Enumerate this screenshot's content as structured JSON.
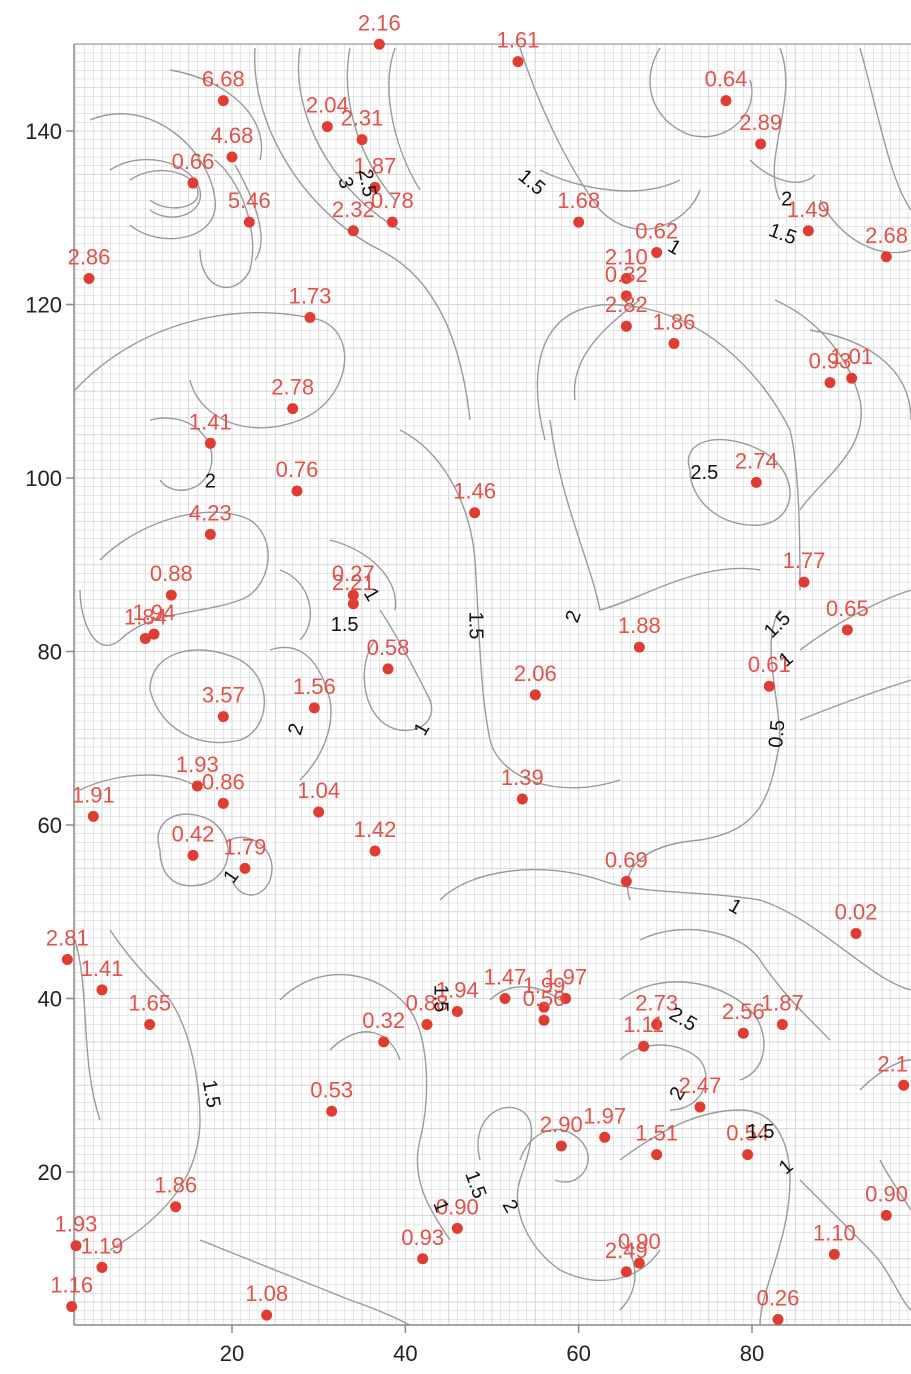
{
  "chart_data": {
    "type": "scatter",
    "title": "",
    "xlabel": "",
    "ylabel": "",
    "xlim": [
      1,
      98
    ],
    "ylim": [
      3,
      150
    ],
    "x_ticks": [
      20,
      40,
      60,
      80
    ],
    "y_ticks": [
      20,
      40,
      60,
      80,
      100,
      120,
      140
    ],
    "grid": true,
    "colors": {
      "point": "#e03c31",
      "label": "#e0524a",
      "contour": "#9a9a9a",
      "grid": "#d7d7d7",
      "axis": "#888888"
    },
    "points": [
      {
        "x": 37,
        "y": 150,
        "label": "2.16"
      },
      {
        "x": 53,
        "y": 148,
        "label": "1.61"
      },
      {
        "x": 19,
        "y": 143.5,
        "label": "6.68"
      },
      {
        "x": 77,
        "y": 143.5,
        "label": "0.64"
      },
      {
        "x": 31,
        "y": 140.5,
        "label": "2.04"
      },
      {
        "x": 35,
        "y": 139,
        "label": "2.31"
      },
      {
        "x": 20,
        "y": 137,
        "label": "4.68"
      },
      {
        "x": 81,
        "y": 138.5,
        "label": "2.89"
      },
      {
        "x": 15.5,
        "y": 134,
        "label": "0.66"
      },
      {
        "x": 36.5,
        "y": 133.5,
        "label": "1.87"
      },
      {
        "x": 22,
        "y": 129.5,
        "label": "5.46"
      },
      {
        "x": 38.5,
        "y": 129.5,
        "label": "0.78"
      },
      {
        "x": 34,
        "y": 128.5,
        "label": "2.32"
      },
      {
        "x": 60,
        "y": 129.5,
        "label": "1.68"
      },
      {
        "x": 86.5,
        "y": 128.5,
        "label": "1.49"
      },
      {
        "x": 69,
        "y": 126,
        "label": "0.62"
      },
      {
        "x": 95.5,
        "y": 125.5,
        "label": "2.68"
      },
      {
        "x": 3.5,
        "y": 123,
        "label": "2.86"
      },
      {
        "x": 65.5,
        "y": 123,
        "label": "2.10"
      },
      {
        "x": 65.5,
        "y": 121,
        "label": "0.32"
      },
      {
        "x": 29,
        "y": 118.5,
        "label": "1.73"
      },
      {
        "x": 65.5,
        "y": 117.5,
        "label": "2.82"
      },
      {
        "x": 71,
        "y": 115.5,
        "label": "1.86"
      },
      {
        "x": 89,
        "y": 111,
        "label": "0.93"
      },
      {
        "x": 91.5,
        "y": 111.5,
        "label": "1.01"
      },
      {
        "x": 27,
        "y": 108,
        "label": "2.78"
      },
      {
        "x": 17.5,
        "y": 104,
        "label": "1.41"
      },
      {
        "x": 80.5,
        "y": 99.5,
        "label": "2.74"
      },
      {
        "x": 27.5,
        "y": 98.5,
        "label": "0.76"
      },
      {
        "x": 48,
        "y": 96,
        "label": "1.46"
      },
      {
        "x": 17.5,
        "y": 93.5,
        "label": "4.23"
      },
      {
        "x": 34,
        "y": 86.5,
        "label": "0.27"
      },
      {
        "x": 34,
        "y": 85.5,
        "label": "2.21"
      },
      {
        "x": 86,
        "y": 88,
        "label": "1.77"
      },
      {
        "x": 13,
        "y": 86.5,
        "label": "0.88"
      },
      {
        "x": 11,
        "y": 82,
        "label": "1.94"
      },
      {
        "x": 10,
        "y": 81.5,
        "label": "1.84"
      },
      {
        "x": 91,
        "y": 82.5,
        "label": "0.65"
      },
      {
        "x": 67,
        "y": 80.5,
        "label": "1.88"
      },
      {
        "x": 38,
        "y": 78,
        "label": "0.58"
      },
      {
        "x": 82,
        "y": 76,
        "label": "0.61"
      },
      {
        "x": 55,
        "y": 75,
        "label": "2.06"
      },
      {
        "x": 29.5,
        "y": 73.5,
        "label": "1.56"
      },
      {
        "x": 19,
        "y": 72.5,
        "label": "3.57"
      },
      {
        "x": 16,
        "y": 64.5,
        "label": "1.93"
      },
      {
        "x": 19,
        "y": 62.5,
        "label": "0.86"
      },
      {
        "x": 4,
        "y": 61,
        "label": "1.91"
      },
      {
        "x": 30,
        "y": 61.5,
        "label": "1.04"
      },
      {
        "x": 53.5,
        "y": 63,
        "label": "1.39"
      },
      {
        "x": 36.5,
        "y": 57,
        "label": "1.42"
      },
      {
        "x": 15.5,
        "y": 56.5,
        "label": "0.42"
      },
      {
        "x": 21.5,
        "y": 55,
        "label": "1.79"
      },
      {
        "x": 65.5,
        "y": 53.5,
        "label": "0.69"
      },
      {
        "x": 92,
        "y": 47.5,
        "label": "0.02"
      },
      {
        "x": 1,
        "y": 44.5,
        "label": "2.81"
      },
      {
        "x": 5,
        "y": 41,
        "label": "1.41"
      },
      {
        "x": 10.5,
        "y": 37,
        "label": "1.65"
      },
      {
        "x": 51.5,
        "y": 40,
        "label": "1.47"
      },
      {
        "x": 58.5,
        "y": 40,
        "label": "1.97"
      },
      {
        "x": 46,
        "y": 38.5,
        "label": "1.94"
      },
      {
        "x": 56,
        "y": 39,
        "label": "1.99"
      },
      {
        "x": 42.5,
        "y": 37,
        "label": "0.88"
      },
      {
        "x": 56,
        "y": 37.5,
        "label": "0.56"
      },
      {
        "x": 37.5,
        "y": 35,
        "label": "0.32"
      },
      {
        "x": 69,
        "y": 37,
        "label": "2.73"
      },
      {
        "x": 67.5,
        "y": 34.5,
        "label": "1.11"
      },
      {
        "x": 79,
        "y": 36,
        "label": "2.56"
      },
      {
        "x": 83.5,
        "y": 37,
        "label": "1.87"
      },
      {
        "x": 97.5,
        "y": 30,
        "label": "2.1"
      },
      {
        "x": 31.5,
        "y": 27,
        "label": "0.53"
      },
      {
        "x": 74,
        "y": 27.5,
        "label": "2.47"
      },
      {
        "x": 58,
        "y": 23,
        "label": "2.90"
      },
      {
        "x": 63,
        "y": 24,
        "label": "1.97"
      },
      {
        "x": 69,
        "y": 22,
        "label": "1.51"
      },
      {
        "x": 79.5,
        "y": 22,
        "label": "0.54"
      },
      {
        "x": 13.5,
        "y": 16,
        "label": "1.86"
      },
      {
        "x": 95.5,
        "y": 15,
        "label": "0.90"
      },
      {
        "x": 46,
        "y": 13.5,
        "label": "0.90"
      },
      {
        "x": 2,
        "y": 11.5,
        "label": "1.93"
      },
      {
        "x": 5,
        "y": 9,
        "label": "1.19"
      },
      {
        "x": 42,
        "y": 10,
        "label": "0.93"
      },
      {
        "x": 67,
        "y": 9.5,
        "label": "0.90"
      },
      {
        "x": 65.5,
        "y": 8.5,
        "label": "2.49"
      },
      {
        "x": 89.5,
        "y": 10.5,
        "label": "1.10"
      },
      {
        "x": 1.5,
        "y": 4.5,
        "label": "1.16"
      },
      {
        "x": 24,
        "y": 3.5,
        "label": "1.08"
      },
      {
        "x": 83,
        "y": 3,
        "label": "0.26"
      }
    ],
    "contour_labels": [
      {
        "x": 33,
        "y": 134,
        "text": "3",
        "rotate": 75
      },
      {
        "x": 35.5,
        "y": 134,
        "text": "2.5",
        "rotate": 80
      },
      {
        "x": 54.5,
        "y": 134,
        "text": "1.5",
        "rotate": 40
      },
      {
        "x": 71,
        "y": 126.5,
        "text": "1",
        "rotate": 30
      },
      {
        "x": 84,
        "y": 132,
        "text": "2",
        "rotate": 0
      },
      {
        "x": 83.5,
        "y": 128,
        "text": "1.5",
        "rotate": 20
      },
      {
        "x": 17.5,
        "y": 99.5,
        "text": "2",
        "rotate": 0
      },
      {
        "x": 74.5,
        "y": 100.5,
        "text": "2.5",
        "rotate": 0
      },
      {
        "x": 36,
        "y": 86.5,
        "text": "1",
        "rotate": 60
      },
      {
        "x": 33,
        "y": 83,
        "text": "1.5",
        "rotate": 0
      },
      {
        "x": 48,
        "y": 83,
        "text": "1.5",
        "rotate": 90
      },
      {
        "x": 59.5,
        "y": 84,
        "text": "2",
        "rotate": -70
      },
      {
        "x": 83,
        "y": 83,
        "text": "1.5",
        "rotate": -45
      },
      {
        "x": 84,
        "y": 79,
        "text": "1",
        "rotate": -40
      },
      {
        "x": 27.5,
        "y": 71,
        "text": "2",
        "rotate": -75
      },
      {
        "x": 42,
        "y": 71,
        "text": "1",
        "rotate": -60
      },
      {
        "x": 83,
        "y": 70.5,
        "text": "0.5",
        "rotate": -85
      },
      {
        "x": 20,
        "y": 54,
        "text": "1",
        "rotate": -55
      },
      {
        "x": 78,
        "y": 50.5,
        "text": "1",
        "rotate": 30
      },
      {
        "x": 44,
        "y": 40,
        "text": "1.5",
        "rotate": 90
      },
      {
        "x": 72,
        "y": 37.5,
        "text": "2.5",
        "rotate": 30
      },
      {
        "x": 71.5,
        "y": 29,
        "text": "2",
        "rotate": -60
      },
      {
        "x": 81,
        "y": 24.5,
        "text": "1.5",
        "rotate": 0
      },
      {
        "x": 84,
        "y": 20.5,
        "text": "1",
        "rotate": -40
      },
      {
        "x": 17.5,
        "y": 29,
        "text": "1.5",
        "rotate": 80
      },
      {
        "x": 48,
        "y": 18.5,
        "text": "1.5",
        "rotate": 70
      },
      {
        "x": 52,
        "y": 16,
        "text": "2",
        "rotate": 60
      },
      {
        "x": 44,
        "y": 16,
        "text": "1",
        "rotate": 70
      }
    ]
  }
}
